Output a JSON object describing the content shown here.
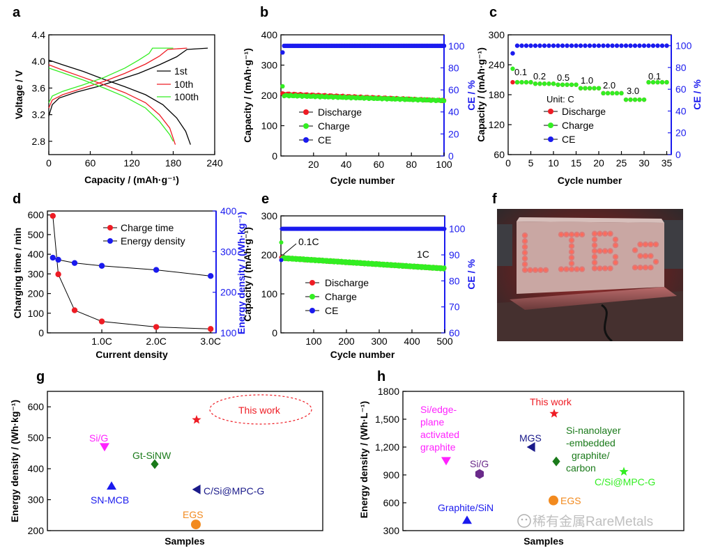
{
  "watermark": "稀有金属RareMetals",
  "panels": {
    "a": "a",
    "b": "b",
    "c": "c",
    "d": "d",
    "e": "e",
    "f": "f",
    "g": "g",
    "h": "h"
  },
  "photo": {
    "sign_text": "LIBs"
  },
  "colors": {
    "red": "#ee1c24",
    "green": "#33ee22",
    "blue": "#1a1aee",
    "black": "#000000"
  },
  "chart_data": [
    {
      "panel": "a",
      "type": "line",
      "xlabel": "Capacity / (mAh·g⁻¹)",
      "ylabel": "Voltage / V",
      "xlim": [
        0,
        240
      ],
      "ylim": [
        2.6,
        4.4
      ],
      "xticks": [
        "0",
        "60",
        "120",
        "180",
        "240"
      ],
      "yticks": [
        "2.8",
        "3.2",
        "3.6",
        "4.0",
        "4.4"
      ],
      "legend": [
        "1st",
        "10th",
        "100th"
      ],
      "series": [
        {
          "name": "1st",
          "color": "#000000",
          "charge": [
            [
              0,
              3.18
            ],
            [
              5,
              3.35
            ],
            [
              15,
              3.45
            ],
            [
              40,
              3.54
            ],
            [
              70,
              3.62
            ],
            [
              100,
              3.72
            ],
            [
              130,
              3.82
            ],
            [
              160,
              3.95
            ],
            [
              185,
              4.07
            ],
            [
              200,
              4.18
            ],
            [
              230,
              4.2
            ]
          ],
          "discharge": [
            [
              0,
              4.02
            ],
            [
              20,
              3.95
            ],
            [
              50,
              3.85
            ],
            [
              80,
              3.73
            ],
            [
              110,
              3.62
            ],
            [
              140,
              3.5
            ],
            [
              165,
              3.35
            ],
            [
              185,
              3.15
            ],
            [
              198,
              2.95
            ],
            [
              205,
              2.75
            ]
          ]
        },
        {
          "name": "10th",
          "color": "#ee1c24",
          "charge": [
            [
              0,
              3.3
            ],
            [
              5,
              3.42
            ],
            [
              20,
              3.5
            ],
            [
              50,
              3.6
            ],
            [
              80,
              3.7
            ],
            [
              110,
              3.82
            ],
            [
              140,
              3.96
            ],
            [
              160,
              4.08
            ],
            [
              172,
              4.18
            ],
            [
              200,
              4.2
            ]
          ],
          "discharge": [
            [
              0,
              3.95
            ],
            [
              20,
              3.87
            ],
            [
              50,
              3.76
            ],
            [
              80,
              3.65
            ],
            [
              110,
              3.53
            ],
            [
              140,
              3.38
            ],
            [
              160,
              3.2
            ],
            [
              175,
              3.0
            ],
            [
              183,
              2.75
            ]
          ]
        },
        {
          "name": "100th",
          "color": "#33ee22",
          "charge": [
            [
              0,
              3.38
            ],
            [
              5,
              3.48
            ],
            [
              20,
              3.55
            ],
            [
              50,
              3.65
            ],
            [
              80,
              3.76
            ],
            [
              110,
              3.9
            ],
            [
              130,
              4.02
            ],
            [
              145,
              4.12
            ],
            [
              150,
              4.2
            ],
            [
              180,
              4.2
            ]
          ],
          "discharge": [
            [
              0,
              3.9
            ],
            [
              20,
              3.83
            ],
            [
              50,
              3.72
            ],
            [
              80,
              3.6
            ],
            [
              110,
              3.47
            ],
            [
              140,
              3.3
            ],
            [
              160,
              3.1
            ],
            [
              175,
              2.9
            ],
            [
              180,
              2.8
            ]
          ]
        }
      ]
    },
    {
      "panel": "b",
      "type": "scatter",
      "xlabel": "Cycle number",
      "ylabel": "Capacity / (mAh·g⁻¹)",
      "y2label": "CE / %",
      "xlim": [
        0,
        100
      ],
      "ylim": [
        0,
        400
      ],
      "y2lim": [
        0,
        110
      ],
      "xticks": [
        "20",
        "40",
        "60",
        "80",
        "100"
      ],
      "yticks": [
        "0",
        "100",
        "200",
        "300",
        "400"
      ],
      "y2ticks": [
        "0",
        "20",
        "40",
        "60",
        "80",
        "100"
      ],
      "legend": [
        "Discharge",
        "Charge",
        "CE"
      ],
      "series": [
        {
          "name": "Discharge",
          "color": "#ee1c24",
          "start": 205,
          "end": 183,
          "first": 205
        },
        {
          "name": "Charge",
          "color": "#33ee22",
          "start": 200,
          "end": 183,
          "first": 230
        },
        {
          "name": "CE",
          "color": "#1a1aee",
          "first": 94,
          "value": 100
        }
      ]
    },
    {
      "panel": "c",
      "type": "scatter",
      "xlabel": "Cycle number",
      "ylabel": "Capacity / (mAh·g⁻¹)",
      "y2label": "CE / %",
      "xlim": [
        0,
        36
      ],
      "ylim": [
        60,
        300
      ],
      "y2lim": [
        0,
        110
      ],
      "xticks": [
        "0",
        "5",
        "10",
        "15",
        "20",
        "25",
        "30",
        "35"
      ],
      "yticks": [
        "60",
        "120",
        "180",
        "240",
        "300"
      ],
      "y2ticks": [
        "0",
        "20",
        "40",
        "60",
        "80",
        "100"
      ],
      "annotation_unit": "Unit: C",
      "rate_labels": [
        "0.1",
        "0.2",
        "0.5",
        "1.0",
        "2.0",
        "3.0",
        "0.1"
      ],
      "legend": [
        "Discharge",
        "Charge",
        "CE"
      ],
      "segments": [
        {
          "from": 1,
          "to": 5,
          "value": 205
        },
        {
          "from": 6,
          "to": 10,
          "value": 202
        },
        {
          "from": 11,
          "to": 15,
          "value": 200
        },
        {
          "from": 16,
          "to": 20,
          "value": 193
        },
        {
          "from": 21,
          "to": 25,
          "value": 183
        },
        {
          "from": 26,
          "to": 30,
          "value": 170
        },
        {
          "from": 31,
          "to": 35,
          "value": 205
        }
      ],
      "first_charge": 232,
      "first_ce": 93,
      "ce": 100
    },
    {
      "panel": "d",
      "type": "line",
      "xlabel": "Current density",
      "ylabel": "Charging time / min",
      "y2label": "Energy density / (Wh·kg⁻¹)",
      "xlim": [
        0,
        3.1
      ],
      "ylim": [
        0,
        620
      ],
      "y2lim": [
        100,
        400
      ],
      "xticks": [
        "1.0C",
        "2.0C",
        "3.0C"
      ],
      "yticks": [
        "0",
        "100",
        "200",
        "300",
        "400",
        "500",
        "600"
      ],
      "y2ticks": [
        "100",
        "200",
        "300",
        "400"
      ],
      "legend": [
        "Charge time",
        "Energy density"
      ],
      "x": [
        0.1,
        0.2,
        0.5,
        1.0,
        2.0,
        3.0
      ],
      "charge_time": [
        595,
        298,
        115,
        58,
        30,
        20
      ],
      "energy_density": [
        285,
        280,
        272,
        265,
        255,
        240
      ]
    },
    {
      "panel": "e",
      "type": "scatter",
      "xlabel": "Cycle number",
      "ylabel": "Capacity / (mAh·g⁻¹)",
      "y2label": "CE / %",
      "xlim": [
        0,
        500
      ],
      "ylim": [
        0,
        300
      ],
      "y2lim": [
        60,
        105
      ],
      "xticks": [
        "100",
        "200",
        "300",
        "400",
        "500"
      ],
      "yticks": [
        "0",
        "100",
        "200",
        "300"
      ],
      "y2ticks": [
        "60",
        "70",
        "80",
        "90",
        "100"
      ],
      "annotations": [
        "0.1C",
        "1C"
      ],
      "legend": [
        "Discharge",
        "Charge",
        "CE"
      ],
      "capacity_start": 192,
      "capacity_end": 165,
      "first_charge": 232,
      "first_ce": 88,
      "ce": 100
    },
    {
      "panel": "g",
      "type": "scatter",
      "xlabel": "Samples",
      "ylabel": "Energy density / (Wh·kg⁻¹)",
      "ylim": [
        200,
        650
      ],
      "yticks": [
        "200",
        "300",
        "400",
        "500",
        "600"
      ],
      "highlight_label": "This work",
      "points": [
        {
          "label": "Si/G",
          "value": 470,
          "marker": "tri-down",
          "color": "#ff22ff"
        },
        {
          "label": "Gt-SiNW",
          "value": 415,
          "marker": "diamond",
          "color": "#1a7a1a"
        },
        {
          "label": "SN-MCB",
          "value": 345,
          "marker": "tri-up",
          "color": "#1a1aee"
        },
        {
          "label": "C/Si@MPC-G",
          "value": 333,
          "marker": "tri-left",
          "color": "#1a1a8a"
        },
        {
          "label": "EGS",
          "value": 220,
          "marker": "circle",
          "color": "#f28a1e"
        },
        {
          "label": "This work",
          "value": 558,
          "marker": "star",
          "color": "#ee1c24"
        }
      ]
    },
    {
      "panel": "h",
      "type": "scatter",
      "xlabel": "Samples",
      "ylabel": "Energy density / (Wh·L⁻¹)",
      "ylim": [
        300,
        1800
      ],
      "yticks": [
        "300",
        "600",
        "900",
        "1,200",
        "1,500",
        "1800"
      ],
      "points": [
        {
          "label": "This work",
          "value": 1560,
          "marker": "star",
          "color": "#ee1c24"
        },
        {
          "label": "Si/edge-plane activated graphite",
          "label_lines": [
            "Si/edge-",
            "plane",
            "activated",
            "graphite"
          ],
          "value": 1050,
          "marker": "tri-down",
          "color": "#ff22ff"
        },
        {
          "label": "MGS",
          "value": 1200,
          "marker": "tri-left",
          "color": "#1a1a8a"
        },
        {
          "label": "Si-nanolayer-embedded graphite/carbon",
          "label_lines": [
            "Si-nanolayer",
            "-embedded",
            "graphite/",
            "carbon"
          ],
          "value": 1045,
          "marker": "diamond",
          "color": "#1a7a1a"
        },
        {
          "label": "Si/G",
          "value": 910,
          "marker": "hexagon",
          "color": "#6a2a8a"
        },
        {
          "label": "C/Si@MPC-G",
          "value": 935,
          "marker": "star",
          "color": "#33ee22"
        },
        {
          "label": "EGS",
          "value": 625,
          "marker": "circle",
          "color": "#f28a1e"
        },
        {
          "label": "Graphite/SiN",
          "value": 415,
          "marker": "tri-up",
          "color": "#1a1aee"
        }
      ]
    }
  ]
}
